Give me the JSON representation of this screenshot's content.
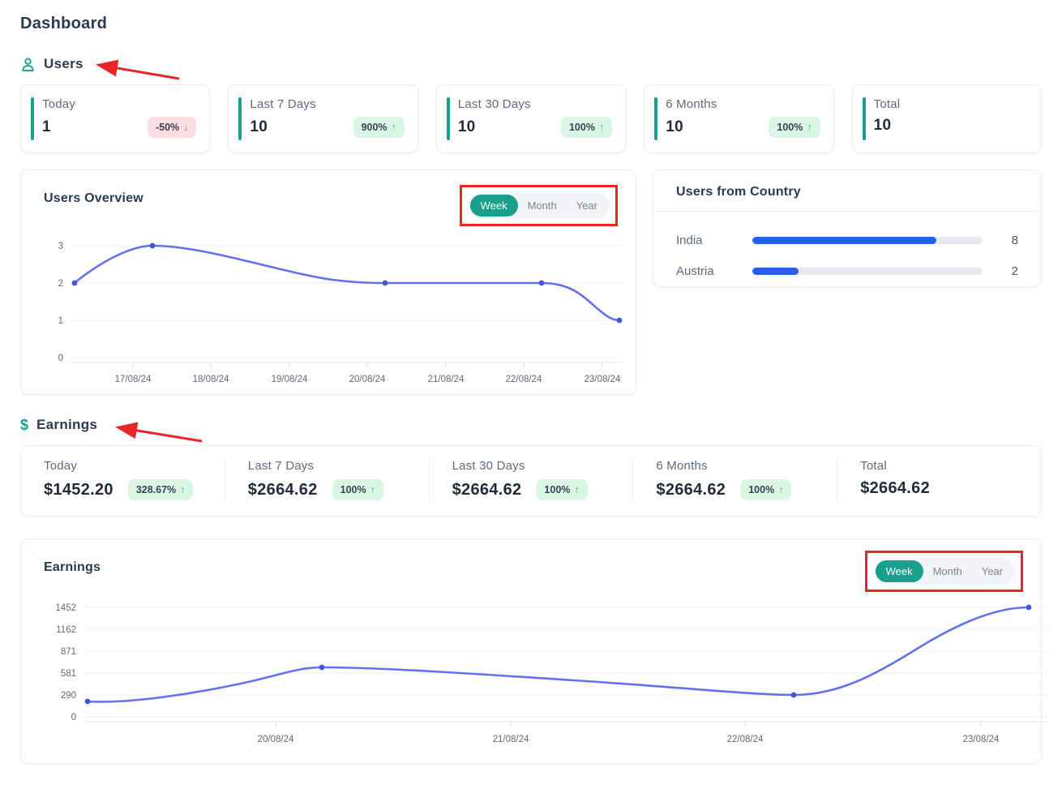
{
  "page": {
    "title": "Dashboard"
  },
  "users": {
    "heading": "Users",
    "stats": [
      {
        "label": "Today",
        "value": "1",
        "badge": "-50%",
        "arrow": "↓",
        "type": "negative"
      },
      {
        "label": "Last 7 Days",
        "value": "10",
        "badge": "900%",
        "arrow": "↑",
        "type": "positive"
      },
      {
        "label": "Last 30 Days",
        "value": "10",
        "badge": "100%",
        "arrow": "↑",
        "type": "positive"
      },
      {
        "label": "6 Months",
        "value": "10",
        "badge": "100%",
        "arrow": "↑",
        "type": "positive"
      },
      {
        "label": "Total",
        "value": "10"
      }
    ],
    "overview": {
      "title": "Users Overview",
      "toggle": {
        "options": [
          "Week",
          "Month",
          "Year"
        ],
        "selected": "Week"
      }
    },
    "country": {
      "title": "Users from Country",
      "rows": [
        {
          "label": "India",
          "value": 8,
          "fraction": 0.8
        },
        {
          "label": "Austria",
          "value": 2,
          "fraction": 0.2
        }
      ]
    }
  },
  "earnings": {
    "heading": "Earnings",
    "stats": [
      {
        "label": "Today",
        "value": "$1452.20",
        "badge": "328.67%",
        "arrow": "↑",
        "type": "positive"
      },
      {
        "label": "Last 7 Days",
        "value": "$2664.62",
        "badge": "100%",
        "arrow": "↑",
        "type": "positive"
      },
      {
        "label": "Last 30 Days",
        "value": "$2664.62",
        "badge": "100%",
        "arrow": "↑",
        "type": "positive"
      },
      {
        "label": "6 Months",
        "value": "$2664.62",
        "badge": "100%",
        "arrow": "↑",
        "type": "positive"
      },
      {
        "label": "Total",
        "value": "$2664.62"
      }
    ],
    "chart_card": {
      "title": "Earnings",
      "toggle": {
        "options": [
          "Week",
          "Month",
          "Year"
        ],
        "selected": "Week"
      }
    }
  },
  "chart_data": [
    {
      "type": "line",
      "title": "Users Overview",
      "curve": "smooth",
      "grid": true,
      "legend": false,
      "line_color": "#6471ee",
      "marker_color": "#4355d8",
      "ylim": [
        0,
        3
      ],
      "y_ticks": [
        0,
        1,
        2,
        3
      ],
      "x_tick_labels": [
        "17/08/24",
        "18/08/24",
        "19/08/24",
        "20/08/24",
        "21/08/24",
        "22/08/24",
        "23/08/24"
      ],
      "points": [
        {
          "x": "series-start",
          "y": 2
        },
        {
          "x": "17/08/24",
          "y": 3
        },
        {
          "x": "20/08/24",
          "y": 2
        },
        {
          "x": "22/08/24",
          "y": 2
        },
        {
          "x": "23/08/24",
          "y": 1
        }
      ]
    },
    {
      "type": "bar",
      "title": "Users from Country",
      "orientation": "horizontal",
      "categories": [
        "India",
        "Austria"
      ],
      "values": [
        8,
        2
      ],
      "xlim": [
        0,
        10
      ],
      "bar_color": "#2760e8"
    },
    {
      "type": "line",
      "title": "Earnings",
      "curve": "smooth",
      "grid": true,
      "legend": false,
      "line_color": "#6471ee",
      "marker_color": "#4355d8",
      "ylim": [
        0,
        1452
      ],
      "y_ticks": [
        0,
        290,
        581,
        871,
        1162,
        1452
      ],
      "x_tick_labels": [
        "20/08/24",
        "21/08/24",
        "22/08/24",
        "23/08/24"
      ],
      "points": [
        {
          "x": "series-start",
          "y": 200
        },
        {
          "x": "20/08/24",
          "y": 660
        },
        {
          "x": "22/08/24",
          "y": 290
        },
        {
          "x": "23/08/24",
          "y": 1452
        }
      ]
    }
  ],
  "annotations": {
    "color": "#e8262a",
    "arrows": [
      "users-heading",
      "earnings-heading"
    ],
    "boxes": [
      "users-overview-toggle",
      "earnings-chart-toggle"
    ]
  },
  "colors": {
    "accent_teal": "#18a08c",
    "navy": "#2b3a4f",
    "label_gray": "#5c6b80",
    "positive_green": "#2dca73",
    "negative_red": "#f4516c",
    "badge_positive_bg": "#d9f6e5",
    "badge_negative_bg": "#fcdde2",
    "bar_blue": "#2760e8",
    "line_indigo": "#6471ee",
    "annotation_red": "#e8262a"
  }
}
